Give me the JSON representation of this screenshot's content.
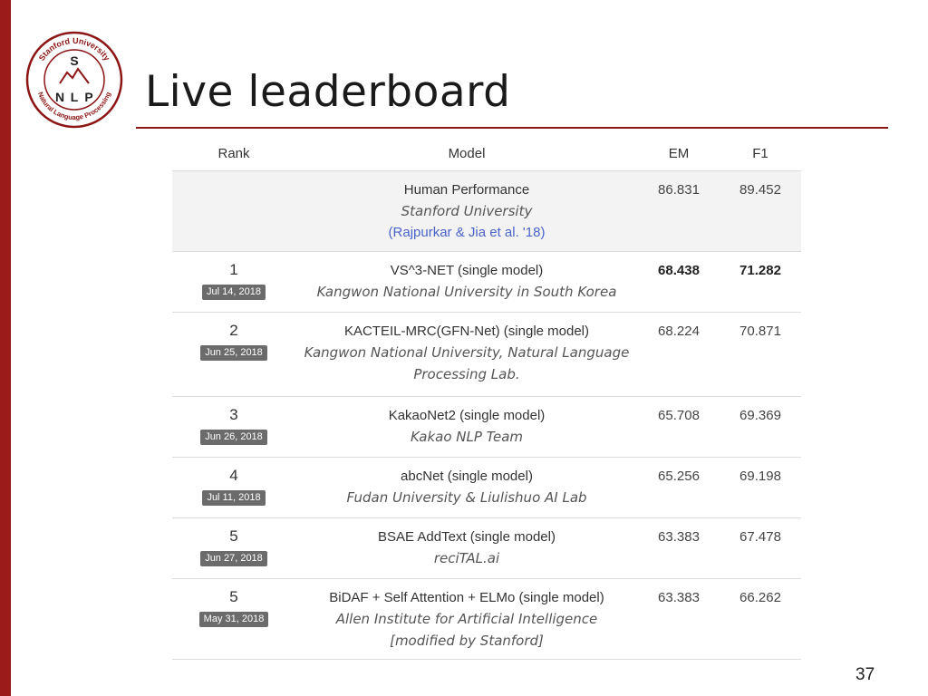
{
  "slide": {
    "title": "Live leaderboard",
    "page_number": "37",
    "accent_color": "#8c1515"
  },
  "logo": {
    "top_text": "Stanford University",
    "bottom_text": "Natural Language Processing",
    "letters": [
      "S",
      "N",
      "L",
      "P"
    ]
  },
  "leaderboard": {
    "headers": {
      "rank": "Rank",
      "model": "Model",
      "em": "EM",
      "f1": "F1"
    },
    "human": {
      "model": "Human Performance",
      "org": "Stanford University",
      "ref": "(Rajpurkar & Jia et al. '18)",
      "em": "86.831",
      "f1": "89.452"
    },
    "rows": [
      {
        "rank": "1",
        "date": "Jul 14, 2018",
        "model": "VS^3-NET (single model)",
        "org": [
          "Kangwon National University in South Korea"
        ],
        "em": "68.438",
        "f1": "71.282",
        "bold": true
      },
      {
        "rank": "2",
        "date": "Jun 25, 2018",
        "model": "KACTEIL-MRC(GFN-Net) (single model)",
        "org": [
          "Kangwon National University, Natural Language",
          "Processing Lab."
        ],
        "em": "68.224",
        "f1": "70.871",
        "bold": false
      },
      {
        "rank": "3",
        "date": "Jun 26, 2018",
        "model": "KakaoNet2 (single model)",
        "org": [
          "Kakao NLP Team"
        ],
        "em": "65.708",
        "f1": "69.369",
        "bold": false
      },
      {
        "rank": "4",
        "date": "Jul 11, 2018",
        "model": "abcNet (single model)",
        "org": [
          "Fudan University & Liulishuo AI Lab"
        ],
        "em": "65.256",
        "f1": "69.198",
        "bold": false
      },
      {
        "rank": "5",
        "date": "Jun 27, 2018",
        "model": "BSAE AddText (single model)",
        "org": [
          "reciTAL.ai"
        ],
        "em": "63.383",
        "f1": "67.478",
        "bold": false
      },
      {
        "rank": "5",
        "date": "May 31, 2018",
        "model": "BiDAF + Self Attention + ELMo (single model)",
        "org": [
          "Allen Institute for Artificial Intelligence",
          "[modified by Stanford]"
        ],
        "em": "63.383",
        "f1": "66.262",
        "bold": false
      }
    ]
  }
}
